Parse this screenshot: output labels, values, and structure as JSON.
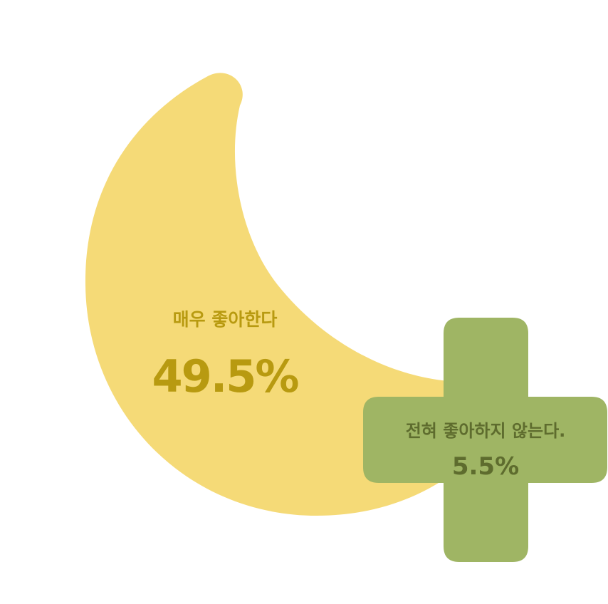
{
  "chart_data": {
    "type": "pie",
    "title": "",
    "segments": [
      {
        "label": "매우 좋아한다",
        "value": 49.5,
        "value_label": "49.5%",
        "shape": "crescent",
        "fill_color": "#F5DA77",
        "label_color": "#B89A10"
      },
      {
        "label": "전혀 좋아하지 않는다.",
        "value": 5.5,
        "value_label": "5.5%",
        "shape": "cross",
        "fill_color": "#9FB564",
        "label_color": "#5E6C2E"
      }
    ]
  }
}
